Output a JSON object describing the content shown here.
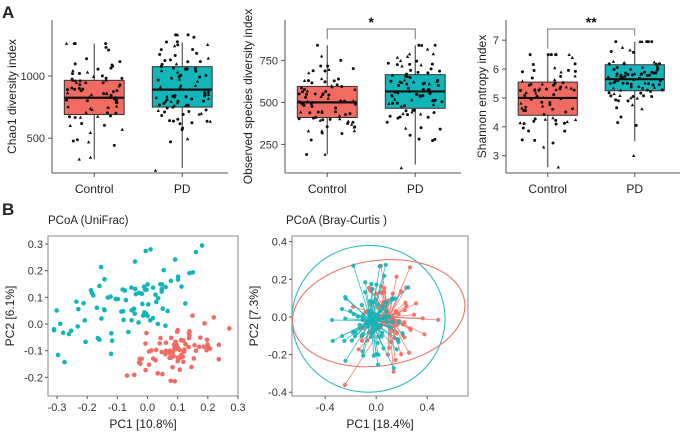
{
  "panel_labels": [
    "A",
    "B"
  ],
  "colors": {
    "control": "#f26b62",
    "pd": "#12b5b8",
    "control_ellipse": "#e8766e",
    "pd_ellipse": "#36bcc0",
    "axis": "#555555",
    "frame": "#888888",
    "point": "#111111"
  },
  "chart_data": [
    {
      "id": "chao1",
      "type": "box",
      "ylabel": "Chao1 diversity index",
      "categories": [
        "Control",
        "PD"
      ],
      "ylim": [
        220,
        1450
      ],
      "yticks": [
        500,
        1000
      ],
      "boxes": [
        {
          "name": "Control",
          "q1": 690,
          "median": 825,
          "q3": 965,
          "whisker_low": 330,
          "whisker_high": 1260,
          "n": 80,
          "spread": [
            330,
            1260
          ]
        },
        {
          "name": "PD",
          "q1": 750,
          "median": 890,
          "q3": 1075,
          "whisker_low": 260,
          "whisker_high": 1270,
          "n": 90,
          "spread": [
            240,
            1330
          ]
        }
      ],
      "significance": null
    },
    {
      "id": "observed",
      "type": "box",
      "ylabel": "Observed species diversity index",
      "categories": [
        "Control",
        "PD"
      ],
      "ylim": [
        80,
        990
      ],
      "yticks": [
        250,
        500,
        750
      ],
      "boxes": [
        {
          "name": "Control",
          "q1": 410,
          "median": 500,
          "q3": 595,
          "whisker_low": 190,
          "whisker_high": 840,
          "n": 80,
          "spread": [
            190,
            840
          ]
        },
        {
          "name": "PD",
          "q1": 465,
          "median": 565,
          "q3": 665,
          "whisker_low": 130,
          "whisker_high": 840,
          "n": 90,
          "spread": [
            110,
            840
          ]
        }
      ],
      "significance": "*"
    },
    {
      "id": "shannon",
      "type": "box",
      "ylabel": "Shannon entropy index",
      "categories": [
        "Control",
        "PD"
      ],
      "ylim": [
        2.4,
        7.7
      ],
      "yticks": [
        3,
        4,
        5,
        6,
        7
      ],
      "boxes": [
        {
          "name": "Control",
          "q1": 4.4,
          "median": 5.0,
          "q3": 5.55,
          "whisker_low": 2.6,
          "whisker_high": 6.5,
          "n": 80,
          "spread": [
            2.6,
            6.5
          ]
        },
        {
          "name": "PD",
          "q1": 5.25,
          "median": 5.65,
          "q3": 6.15,
          "whisker_low": 3.5,
          "whisker_high": 6.95,
          "n": 90,
          "spread": [
            3.0,
            6.95
          ]
        }
      ],
      "significance": "**"
    },
    {
      "id": "pcoa_unifrac",
      "type": "scatter",
      "title": "PCoA (UniFrac)",
      "xlabel": "PC1 [10.8%]",
      "ylabel": "PC2 [6.1%]",
      "xlim": [
        -0.33,
        0.3
      ],
      "ylim": [
        -0.27,
        0.33
      ],
      "xticks": [
        -0.3,
        -0.2,
        -0.1,
        0.0,
        0.1,
        0.2,
        0.3
      ],
      "xtick_labels": [
        "-0.3",
        "-0.2",
        "-0.1",
        "0.0",
        "0.1",
        "0.2",
        "0.3"
      ],
      "yticks": [
        -0.2,
        -0.1,
        0.0,
        0.1,
        0.2,
        0.3
      ],
      "ytick_labels": [
        "-0.2",
        "-0.1",
        "0.0",
        "0.1",
        "0.2",
        "0.3"
      ],
      "series": [
        {
          "name": "PD",
          "n": 90,
          "center": [
            -0.05,
            0.09
          ],
          "spread": [
            0.12,
            0.075
          ]
        },
        {
          "name": "Control",
          "n": 80,
          "center": [
            0.1,
            -0.1
          ],
          "spread": [
            0.09,
            0.055
          ]
        }
      ]
    },
    {
      "id": "pcoa_bray",
      "type": "scatter",
      "title": "PCoA (Bray-Curtis )",
      "xlabel": "PC1 [18.4%]",
      "ylabel": "PC2 [7.3%]",
      "xlim": [
        -0.66,
        0.72
      ],
      "ylim": [
        -0.42,
        0.43
      ],
      "xticks": [
        -0.4,
        0.0,
        0.4
      ],
      "xtick_labels": [
        "-0.4",
        "0.0",
        "0.4"
      ],
      "yticks": [
        -0.4,
        -0.2,
        0.0,
        0.2,
        0.4
      ],
      "ytick_labels": [
        "-0.4",
        "-0.2",
        "0.0",
        "0.2",
        "0.4"
      ],
      "series": [
        {
          "name": "PD",
          "n": 90,
          "centroid": [
            -0.04,
            -0.02
          ],
          "spread": [
            0.14,
            0.13
          ],
          "ellipse": {
            "cx": -0.06,
            "cy": -0.01,
            "rx": 0.6,
            "ry": 0.39,
            "angle_deg": -2
          }
        },
        {
          "name": "Control",
          "n": 80,
          "centroid": [
            0.1,
            0.0
          ],
          "spread": [
            0.13,
            0.1
          ],
          "ellipse": {
            "cx": 0.02,
            "cy": 0.02,
            "rx": 0.68,
            "ry": 0.28,
            "angle_deg": -8
          }
        }
      ]
    }
  ]
}
